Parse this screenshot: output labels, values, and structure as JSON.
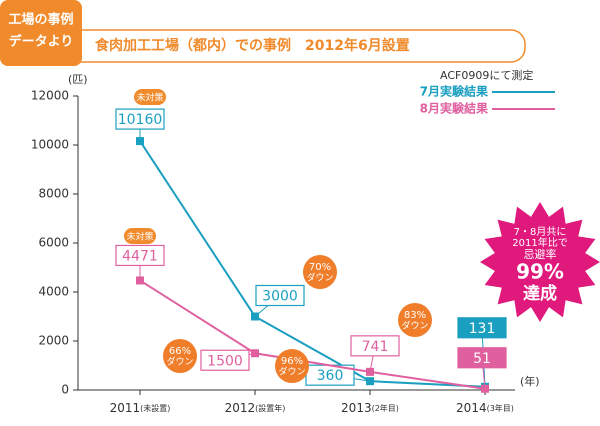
{
  "chart_data": {
    "type": "line",
    "badge": [
      "工場の事例",
      "データより"
    ],
    "title": "食肉加工工場（都内）での事例　2012年6月設置",
    "legend_note": "ACF0909にて測定",
    "y_unit": "(匹)",
    "x_unit": "(年)",
    "categories": [
      "2011",
      "2012",
      "2013",
      "2014"
    ],
    "category_notes": [
      "(未設置)",
      "(設置年)",
      "(2年目)",
      "(3年目)"
    ],
    "ylim": [
      0,
      12000
    ],
    "yticks": [
      0,
      2000,
      4000,
      6000,
      8000,
      10000,
      12000
    ],
    "series": [
      {
        "name": "7月実験結果",
        "color": "#1a9fc0",
        "values": [
          10160,
          3000,
          360,
          131
        ]
      },
      {
        "name": "8月実験結果",
        "color": "#e0609f",
        "values": [
          4471,
          1500,
          741,
          51
        ]
      }
    ],
    "notes": [
      "未対策",
      "未対策"
    ],
    "drops": [
      [
        "70%",
        "ダウン"
      ],
      [
        "66%",
        "ダウン"
      ],
      [
        "96%",
        "ダウン"
      ],
      [
        "83%",
        "ダウン"
      ]
    ],
    "burst": [
      "7・8月共に",
      "2011年比で",
      "忌避率",
      "99%",
      "達成"
    ]
  }
}
